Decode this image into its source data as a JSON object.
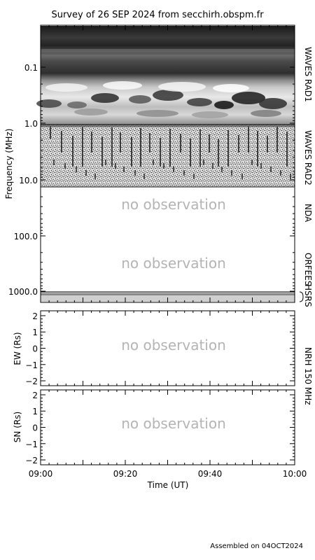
{
  "title": "Survey of 26 SEP 2024 from secchirh.obspm.fr",
  "footer": "Assembled on 04OCT2024",
  "chart_data": [
    {
      "type": "heatmap",
      "name": "dynamic-spectrum",
      "ylabel": "Frequency (MHz)",
      "yscale": "log",
      "yticks": [
        "0.1",
        "1.0",
        "10.0",
        "100.0",
        "1000.0"
      ],
      "ylim": [
        0.02,
        1400
      ],
      "x": [
        "09:00",
        "10:00"
      ],
      "bands": [
        {
          "label": "WAVES RAD1",
          "range": [
            0.02,
            1.0
          ],
          "status": "data"
        },
        {
          "label": "WAVES RAD2",
          "range": [
            1.0,
            14.0
          ],
          "status": "data"
        },
        {
          "label": "NDA",
          "range": [
            14.0,
            80.0
          ],
          "status": "no observation"
        },
        {
          "label": "ORFEES",
          "range": [
            80.0,
            1000.0
          ],
          "status": "no observation"
        },
        {
          "label": "HSRS",
          "range": [
            1000.0,
            1400.0
          ],
          "status": "data"
        }
      ],
      "annotation": "no observation"
    },
    {
      "type": "line",
      "name": "nrh-ew",
      "ylabel": "EW (Rs)",
      "yticks": [
        "2",
        "1",
        "0",
        "−1",
        "−2"
      ],
      "ylim": [
        -2.3,
        2.3
      ],
      "annotation": "no observation"
    },
    {
      "type": "line",
      "name": "nrh-sn",
      "ylabel": "SN (Rs)",
      "yticks": [
        "2",
        "1",
        "0",
        "−1",
        "−2"
      ],
      "ylim": [
        -2.3,
        2.3
      ],
      "annotation": "no observation"
    }
  ],
  "right_labels": {
    "rad1": "WAVES RAD1",
    "rad2": "WAVES RAD2",
    "nda": "NDA",
    "orfees": "ORFEES",
    "hsrs": "HSRS",
    "nrh": "NRH 150 MHz"
  },
  "xaxis": {
    "label": "Time (UT)",
    "ticks": [
      "09:00",
      "09:20",
      "09:40",
      "10:00"
    ]
  }
}
